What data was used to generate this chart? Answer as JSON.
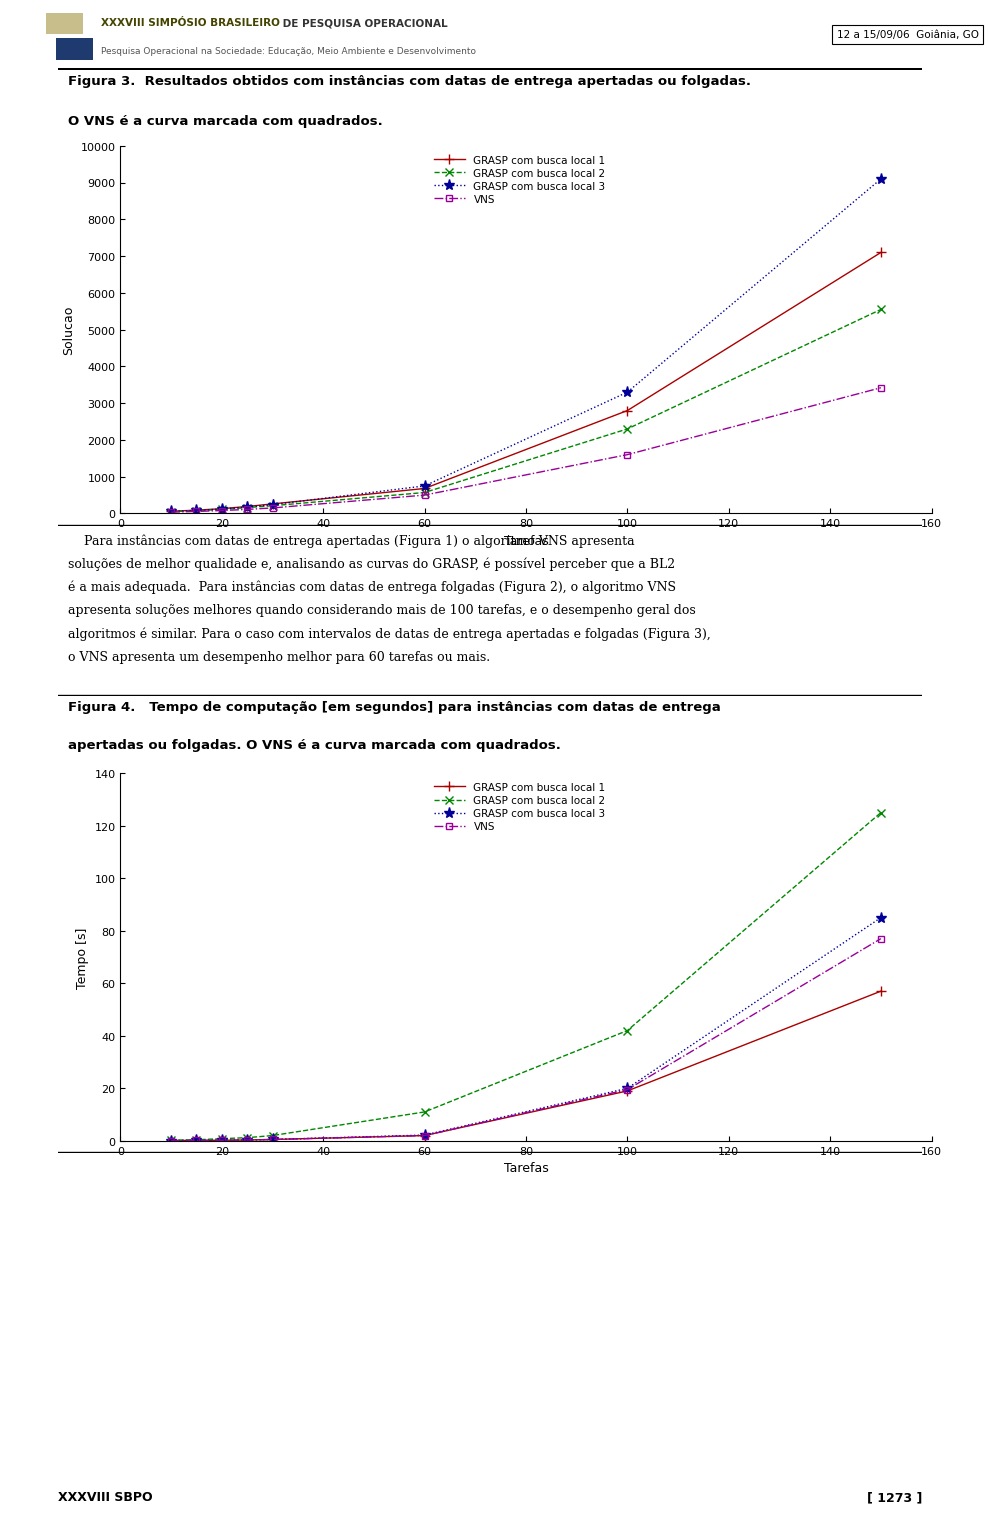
{
  "fig_width": 9.6,
  "fig_height": 15.19,
  "footer_left": "XXXVIII SBPO",
  "footer_right": "[ 1273 ]",
  "fig3_title_line1": "Figura 3.  Resultados obtidos com instâncias com datas de entrega apertadas ou folgadas.",
  "fig3_title_line2": "O VNS é a curva marcada com quadrados.",
  "fig3_xlabel": "Tarefas",
  "fig3_ylabel": "Solucao",
  "fig3_xlim": [
    0,
    160
  ],
  "fig3_ylim": [
    0,
    10000
  ],
  "fig3_xticks": [
    0,
    20,
    40,
    60,
    80,
    100,
    120,
    140,
    160
  ],
  "fig3_yticks": [
    0,
    1000,
    2000,
    3000,
    4000,
    5000,
    6000,
    7000,
    8000,
    9000,
    10000
  ],
  "fig3_x": [
    10,
    15,
    20,
    25,
    30,
    60,
    100,
    150
  ],
  "fig3_grasp1": [
    60,
    90,
    130,
    190,
    260,
    680,
    2800,
    7100
  ],
  "fig3_grasp2": [
    50,
    75,
    110,
    160,
    210,
    570,
    2300,
    5550
  ],
  "fig3_grasp3": [
    55,
    85,
    120,
    175,
    240,
    750,
    3300,
    9100
  ],
  "fig3_vns": [
    35,
    55,
    80,
    110,
    150,
    500,
    1600,
    3420
  ],
  "fig4_title_line1": "Figura 4.   Tempo de computação [em segundos] para instâncias com datas de entrega",
  "fig4_title_line2": "apertadas ou folgadas. O VNS é a curva marcada com quadrados.",
  "fig4_xlabel": "Tarefas",
  "fig4_ylabel": "Tempo [s]",
  "fig4_xlim": [
    0,
    160
  ],
  "fig4_ylim": [
    0,
    140
  ],
  "fig4_xticks": [
    0,
    20,
    40,
    60,
    80,
    100,
    120,
    140,
    160
  ],
  "fig4_yticks": [
    0,
    20,
    40,
    60,
    80,
    100,
    120,
    140
  ],
  "fig4_x": [
    10,
    15,
    20,
    25,
    30,
    60,
    100,
    150
  ],
  "fig4_grasp1": [
    0.1,
    0.15,
    0.2,
    0.3,
    0.5,
    2.0,
    19.0,
    57
  ],
  "fig4_grasp2": [
    0.2,
    0.4,
    0.8,
    1.2,
    2.0,
    11.0,
    42,
    125
  ],
  "fig4_grasp3": [
    0.1,
    0.15,
    0.2,
    0.35,
    0.5,
    2.2,
    20.0,
    85
  ],
  "fig4_vns": [
    0.1,
    0.15,
    0.2,
    0.3,
    0.5,
    2.0,
    19.5,
    77
  ],
  "legend_labels": [
    "GRASP com busca local 1",
    "GRASP com busca local 2",
    "GRASP com busca local 3",
    "VNS"
  ],
  "colors": [
    "#aa0000",
    "#008800",
    "#000099",
    "#990099"
  ],
  "body_text_lines": [
    "    Para instâncias com datas de entrega apertadas (Figura 1) o algoritmo VNS apresenta",
    "soluções de melhor qualidade e, analisando as curvas do GRASP, é possível perceber que a BL2",
    "é a mais adequada.  Para instâncias com datas de entrega folgadas (Figura 2), o algoritmo VNS",
    "apresenta soluções melhores quando considerando mais de 100 tarefas, e o desempenho geral dos",
    "algoritmos é similar. Para o caso com intervalos de datas de entrega apertadas e folgadas (Figura 3),",
    "o VNS apresenta um desempenho melhor para 60 tarefas ou mais."
  ],
  "header_title": "XXXVIII SIMPÓSIO BRASILEIRO",
  "header_title2": " DE PESQUISA OPERACIONAL",
  "header_sub": "Pesquisa Operacional na Sociedade: Educação, Meio Ambiente e Desenvolvimento",
  "header_right": "12 a 15/09/06  Goiânia, GO"
}
